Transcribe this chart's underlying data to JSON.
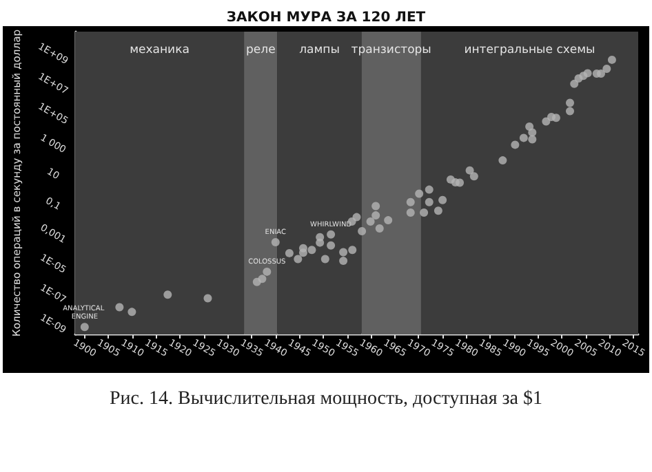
{
  "chart_data": {
    "type": "scatter",
    "title": "ЗАКОН МУРА ЗА 120 ЛЕТ",
    "ylabel": "Количество операций в секунду за постоянный доллар",
    "log": "y",
    "grid": false,
    "marker": "circle",
    "x": [
      1900,
      1907.3,
      1909.9,
      1917.4,
      1925.8,
      1936.1,
      1937.2,
      1938.2,
      1940,
      1942.9,
      1944.7,
      1945.8,
      1945.8,
      1947.6,
      1949.3,
      1949.3,
      1950.4,
      1951.6,
      1951.6,
      1954.2,
      1954.2,
      1956.1,
      1956,
      1957,
      1958.1,
      1959.9,
      1961,
      1961,
      1961.8,
      1963.6,
      1968.3,
      1968.3,
      1970.1,
      1971.1,
      1972.2,
      1972.2,
      1974.1,
      1975,
      1976.7,
      1977.7,
      1978.6,
      1980.7,
      1981.6,
      1987.6,
      1990.2,
      1992,
      1993.2,
      1993.8,
      1993.8,
      1996.7,
      1997.8,
      1998.8,
      2001.7,
      2001.7,
      2002.6,
      2003.5,
      2004.5,
      2005.4,
      2007.3,
      2008.2,
      2009.4,
      2010.5
    ],
    "series": [
      {
        "color": "#b4b4b4",
        "values": [
          6.2e-10,
          1.3e-08,
          6.3e-09,
          8.9e-08,
          5.1e-08,
          6.3e-07,
          1e-06,
          3e-06,
          0.00028,
          5.2e-05,
          2.1e-05,
          0.00011,
          5.6e-05,
          8.5e-05,
          0.0006,
          0.00026,
          2.1e-05,
          0.00091,
          0.00017,
          6e-05,
          1.6e-05,
          8.5e-05,
          0.0066,
          0.013,
          0.0015,
          0.0066,
          0.017,
          0.071,
          0.0023,
          0.0081,
          0.13,
          0.026,
          0.48,
          0.026,
          0.89,
          0.13,
          0.035,
          0.18,
          4.2,
          2.7,
          2.6,
          17,
          6.9,
          79,
          870,
          2500,
          14000,
          5800,
          2000,
          31000,
          62000,
          54000,
          150000,
          540000,
          10000000.0,
          23000000.0,
          34000000.0,
          51000000.0,
          48000000.0,
          48000000.0,
          100000000.0,
          400000000.0
        ]
      }
    ],
    "xlim": [
      1898,
      2016
    ],
    "xticks": [
      1900,
      1905,
      1910,
      1915,
      1920,
      1925,
      1930,
      1935,
      1940,
      1945,
      1950,
      1955,
      1960,
      1965,
      1970,
      1975,
      1980,
      1985,
      1990,
      1995,
      2000,
      2005,
      2010,
      2015
    ],
    "ylim": [
      2e-10,
      30000000000.0
    ],
    "yticks": [
      {
        "value": 1e-09,
        "label": "1E-09"
      },
      {
        "value": 1e-07,
        "label": "1E-07"
      },
      {
        "value": 1e-05,
        "label": "1E-05"
      },
      {
        "value": 0.001,
        "label": "0,001"
      },
      {
        "value": 0.1,
        "label": "0,1"
      },
      10,
      {
        "value": 1000,
        "label": "1 000"
      },
      {
        "value": 100000.0,
        "label": "1E+05"
      },
      {
        "value": 10000000.0,
        "label": "1E+07"
      },
      {
        "value": 1000000000.0,
        "label": "1E+09"
      }
    ],
    "bands": [
      {
        "axis": "x",
        "from": 1898,
        "to": 1933.4,
        "label": "механика",
        "color": "#3c3c3c"
      },
      {
        "axis": "x",
        "from": 1933.4,
        "to": 1940.4,
        "label": "реле",
        "color": "#606060"
      },
      {
        "axis": "x",
        "from": 1940.4,
        "to": 1958,
        "label": "лампы",
        "color": "#3c3c3c"
      },
      {
        "axis": "x",
        "from": 1958,
        "to": 1970.5,
        "label": "транзисторы",
        "color": "#606060"
      },
      {
        "axis": "x",
        "from": 1970.5,
        "to": 2016,
        "label": "интегральные схемы",
        "color": "#3c3c3c"
      }
    ],
    "annotations": [
      {
        "text": "ANALYTICAL ENGINE",
        "x": 1900,
        "y": 6.2e-10
      },
      {
        "text": "COLOSSUS",
        "x": 1938.2,
        "y": 3e-06
      },
      {
        "text": "ENIAC",
        "x": 1940,
        "y": 0.00028
      },
      {
        "text": "WHIRLWIND",
        "x": 1951.6,
        "y": 0.00091
      },
      "Рис. 14. Вычислительная мощность, доступная за $1"
    ]
  }
}
